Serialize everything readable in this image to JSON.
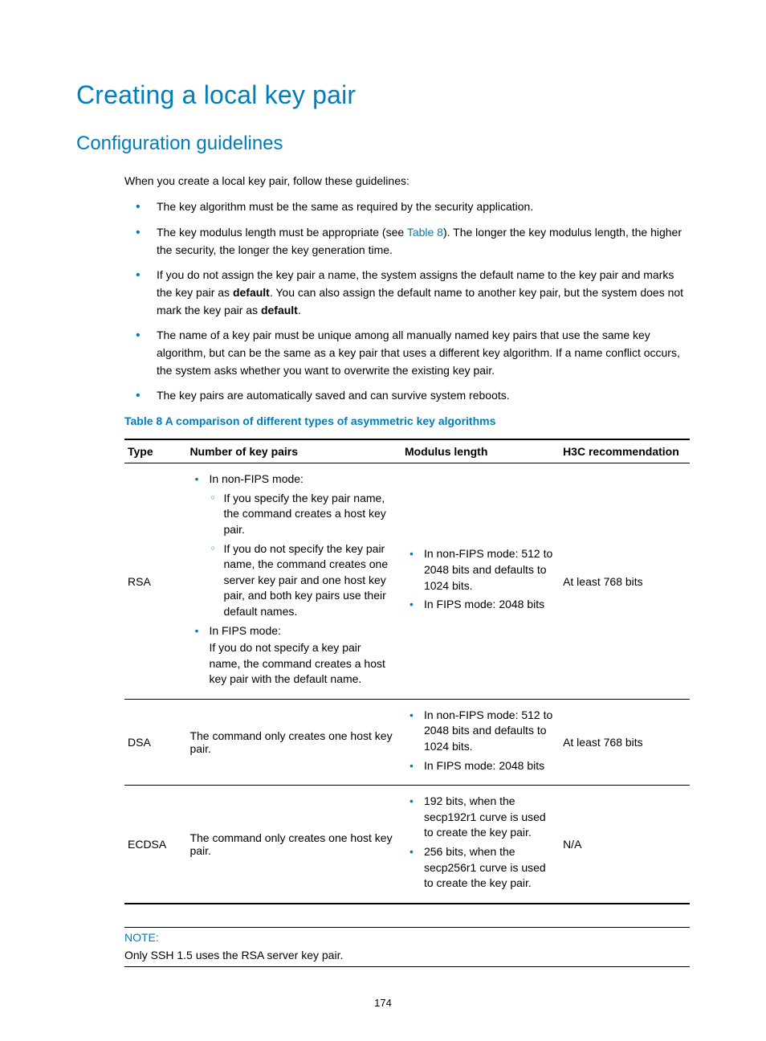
{
  "colors": {
    "accent": "#007dba",
    "text": "#000000",
    "background": "#ffffff"
  },
  "heading1": "Creating a local key pair",
  "heading2": "Configuration guidelines",
  "intro": "When you create a local key pair, follow these guidelines:",
  "bullets": {
    "b1": "The key algorithm must be the same as required by the security application.",
    "b2_pre": "The key modulus length must be appropriate (see ",
    "b2_link": "Table 8",
    "b2_post": "). The longer the key modulus length, the higher the security, the longer the key generation time.",
    "b3_pre": "If you do not assign the key pair a name, the system assigns the default name to the key pair and marks the key pair as ",
    "b3_bold1": "default",
    "b3_mid": ". You can also assign the default name to another key pair, but the system does not mark the key pair as ",
    "b3_bold2": "default",
    "b3_end": ".",
    "b4": "The name of a key pair must be unique among all manually named key pairs that use the same key algorithm, but can be the same as a key pair that uses a different key algorithm. If a name conflict occurs, the system asks whether you want to overwrite the existing key pair.",
    "b5": "The key pairs are automatically saved and can survive system reboots."
  },
  "table_title": "Table 8 A comparison of different types of asymmetric key algorithms",
  "table": {
    "headers": {
      "type": "Type",
      "pairs": "Number of key pairs",
      "mod": "Modulus length",
      "rec": "H3C recommendation"
    },
    "rsa": {
      "type": "RSA",
      "pairs_b1": "In non-FIPS mode:",
      "pairs_s1": "If you specify the key pair name, the command creates a host key pair.",
      "pairs_s2": "If you do not specify the key pair name, the command creates one server key pair and one host key pair, and both key pairs use their default names.",
      "pairs_b2": "In FIPS mode:",
      "pairs_b2_sub": "If you do not specify a key pair name, the command creates a host key pair with the default name.",
      "mod_b1": "In non-FIPS mode: 512 to 2048 bits and defaults to 1024 bits.",
      "mod_b2": "In FIPS mode: 2048 bits",
      "rec": "At least 768 bits"
    },
    "dsa": {
      "type": "DSA",
      "pairs": "The command only creates one host key pair.",
      "mod_b1": "In non-FIPS mode: 512 to 2048 bits and defaults to 1024 bits.",
      "mod_b2": "In FIPS mode: 2048 bits",
      "rec": "At least 768 bits"
    },
    "ecdsa": {
      "type": "ECDSA",
      "pairs": "The command only creates one host key pair.",
      "mod_b1": "192 bits, when the secp192r1 curve is used to create the key pair.",
      "mod_b2": "256 bits, when the secp256r1 curve is used to create the key pair.",
      "rec": "N/A"
    }
  },
  "note": {
    "label": "NOTE:",
    "text": "Only SSH 1.5 uses the RSA server key pair."
  },
  "page_number": "174"
}
